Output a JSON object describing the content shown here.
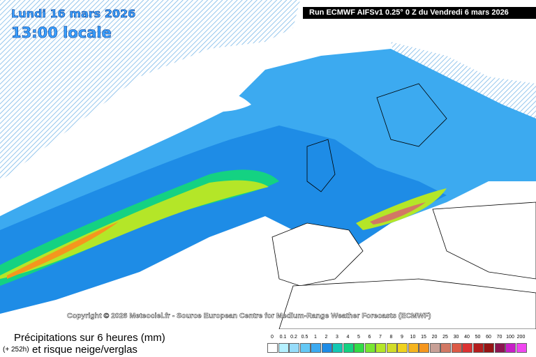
{
  "header": {
    "date": "Lundi 16 mars 2026",
    "time": "13:00 locale",
    "run": "Run ECMWF AIFSv1 0.25° 0 Z du Vendredi 6 mars 2026"
  },
  "copyright": "Copyright © 2026 Meteociel.fr - Source European Centre for Medium-Range Weather Forecasts (ECMWF)",
  "footer": {
    "title": "Précipitations sur 6 heures (mm)",
    "lead": "(+ 252h)",
    "subtitle": "et risque neige/verglas"
  },
  "legend": [
    {
      "label": "0",
      "color": "#ffffff"
    },
    {
      "label": "0.1",
      "color": "#b4f0ff"
    },
    {
      "label": "0.2",
      "color": "#96dcfa"
    },
    {
      "label": "0.5",
      "color": "#64c8f5"
    },
    {
      "label": "1",
      "color": "#3caaf0"
    },
    {
      "label": "2",
      "color": "#1e8ce6"
    },
    {
      "label": "3",
      "color": "#14c8b4"
    },
    {
      "label": "4",
      "color": "#14d282"
    },
    {
      "label": "5",
      "color": "#32dc46"
    },
    {
      "label": "6",
      "color": "#78e632"
    },
    {
      "label": "7",
      "color": "#b4e628"
    },
    {
      "label": "8",
      "color": "#d2dc28"
    },
    {
      "label": "9",
      "color": "#f0d21e"
    },
    {
      "label": "10",
      "color": "#f5b41e"
    },
    {
      "label": "15",
      "color": "#f5961e"
    },
    {
      "label": "20",
      "color": "#c8a096"
    },
    {
      "label": "25",
      "color": "#d27864"
    },
    {
      "label": "30",
      "color": "#dc5a46"
    },
    {
      "label": "40",
      "color": "#dc3232"
    },
    {
      "label": "50",
      "color": "#b41e1e"
    },
    {
      "label": "60",
      "color": "#961414"
    },
    {
      "label": "70",
      "color": "#8c1450"
    },
    {
      "label": "100",
      "color": "#c81ec8"
    },
    {
      "label": "200",
      "color": "#f046f0"
    }
  ]
}
